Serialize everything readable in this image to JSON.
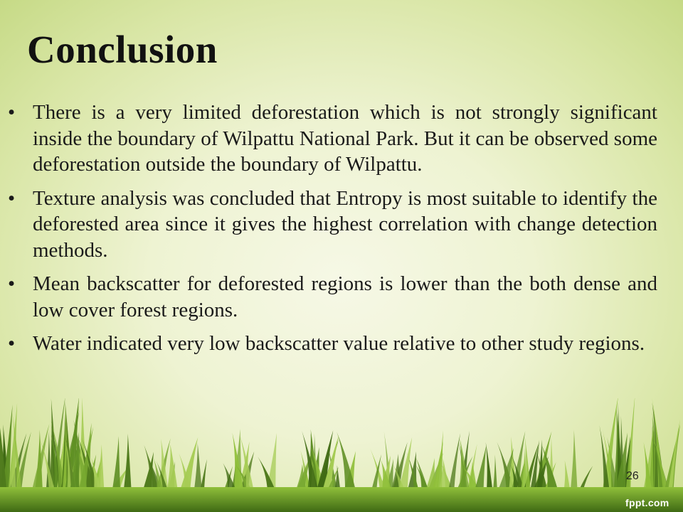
{
  "slide": {
    "title": "Conclusion",
    "bullets": [
      "There is a very limited deforestation which is not strongly significant inside the boundary of Wilpattu National Park. But it can be observed some deforestation outside the boundary of Wilpattu.",
      "Texture analysis was concluded that Entropy is most suitable to identify the deforested area since it gives the highest correlation with change detection methods.",
      "Mean backscatter for deforested regions is lower than the both dense and low cover forest regions.",
      "Water indicated very low backscatter value relative to other study regions."
    ],
    "bullet_symbol": "•",
    "page_number": "26",
    "brand": "fppt.com"
  },
  "colors": {
    "background_center": "#f6f8e6",
    "background_edge": "#c6da86",
    "grass_dark": "#4f7a1c",
    "grass_light": "#8fbf3a",
    "text": "#1a1a1a"
  },
  "icons": [
    "grass-decoration-icon"
  ]
}
